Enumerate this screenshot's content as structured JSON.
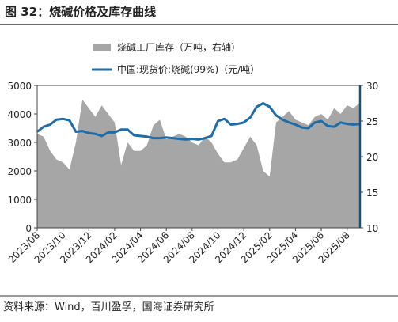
{
  "title": "图 32：烧碱价格及库存曲线",
  "source": "资料来源：Wind，百川盈孚，国海证券研究所",
  "chart_data": {
    "type": "combo",
    "categories": [
      "2023/08",
      null,
      null,
      null,
      "2023/10",
      null,
      null,
      null,
      "2023/12",
      null,
      null,
      null,
      "2024/02",
      null,
      null,
      null,
      "2024/04",
      null,
      null,
      null,
      "2024/06",
      null,
      null,
      null,
      "2024/08",
      null,
      null,
      null,
      "2024/10",
      null,
      null,
      null,
      "2024/12",
      null,
      null,
      null,
      "2025/02",
      null,
      null,
      null,
      "2025/04",
      null,
      null,
      null,
      "2025/06",
      null,
      null,
      null,
      "2025/08",
      null,
      null
    ],
    "series": [
      {
        "name": "烧碱工厂库存（万吨，右轴）",
        "type": "area",
        "color": "#a6a6a6",
        "values": [
          3300,
          3200,
          2700,
          2400,
          2300,
          2050,
          3000,
          4500,
          4200,
          3900,
          4300,
          4000,
          3700,
          2200,
          3000,
          2700,
          2700,
          2900,
          3600,
          3800,
          3100,
          3200,
          3300,
          3200,
          3000,
          2900,
          3200,
          3000,
          2600,
          2300,
          2300,
          2400,
          2800,
          3200,
          2900,
          2000,
          1800,
          3700,
          3900,
          4100,
          3800,
          3700,
          3600,
          3900,
          4000,
          3800,
          4200,
          4000,
          4300,
          4200,
          4400
        ]
      },
      {
        "name": "中国:现货价:烧碱(99%)（元/吨）",
        "type": "line",
        "axis": "y2",
        "color": "#1f6ca6",
        "values": [
          23.5,
          24.2,
          24.5,
          25.2,
          25.3,
          25.1,
          23.5,
          23.6,
          23.3,
          23.2,
          22.9,
          23.4,
          23.4,
          23.8,
          23.8,
          23.0,
          22.9,
          22.8,
          22.6,
          22.6,
          22.7,
          22.6,
          22.5,
          22.4,
          22.5,
          22.4,
          22.6,
          22.9,
          25.0,
          25.3,
          24.5,
          24.6,
          24.8,
          25.5,
          27.0,
          27.5,
          27.0,
          25.8,
          25.2,
          24.8,
          24.5,
          24.1,
          24.0,
          24.8,
          25.0,
          24.3,
          24.2,
          24.8,
          24.6,
          24.5,
          24.6
        ]
      }
    ],
    "ylim": [
      0,
      5000
    ],
    "yticks": [
      0,
      1000,
      2000,
      3000,
      4000,
      5000
    ],
    "y2lim": [
      10,
      30
    ],
    "y2ticks": [
      10,
      15,
      20,
      25,
      30
    ]
  }
}
